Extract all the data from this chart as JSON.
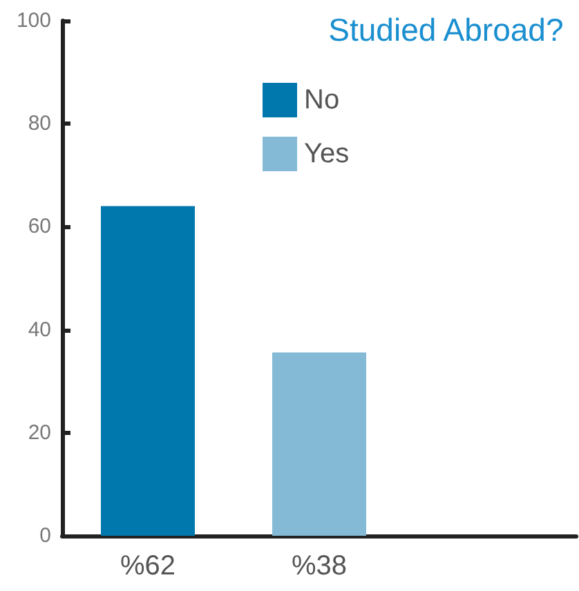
{
  "chart_data": {
    "type": "bar",
    "legend_title": "Studied Abroad?",
    "categories": [
      "%62",
      "%38",
      null
    ],
    "stacked": true,
    "series": [
      {
        "name": "No",
        "color": "#0077ad",
        "values": [
          64,
          null,
          null
        ]
      },
      {
        "name": "Yes",
        "color": "#84bad5",
        "values": [
          null,
          35.6,
          null
        ]
      }
    ],
    "ylim": [
      0,
      100
    ],
    "yticks": [
      0,
      20,
      40,
      60,
      80,
      100
    ],
    "grid": false,
    "legend": "top"
  }
}
